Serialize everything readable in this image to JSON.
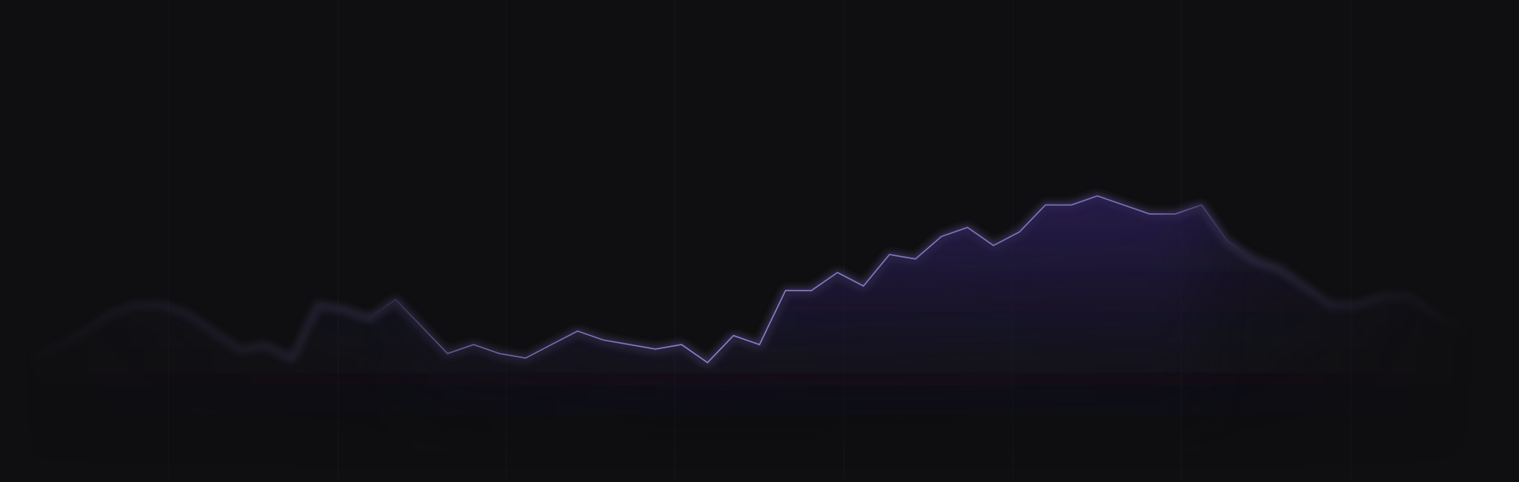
{
  "chart_data": {
    "type": "area",
    "x": [
      0,
      1,
      2,
      3,
      4,
      5,
      6,
      7,
      8,
      9,
      10,
      11,
      12,
      13,
      14,
      15,
      16,
      17,
      18,
      19,
      20,
      21,
      22,
      23,
      24,
      25,
      26,
      27,
      28,
      29,
      30,
      31,
      32,
      33,
      34,
      35,
      36,
      37,
      38,
      39,
      40,
      41,
      42,
      43,
      44,
      45,
      46,
      47,
      48,
      49,
      50,
      51,
      52,
      53,
      54,
      55,
      56
    ],
    "series": [
      {
        "values": [
          24,
          27,
          30,
          34,
          36,
          36,
          34,
          30,
          26,
          27,
          24,
          36,
          35,
          33,
          37,
          31,
          25,
          27,
          25,
          24,
          27,
          30,
          28,
          27,
          26,
          27,
          23,
          29,
          27,
          39,
          39,
          43,
          40,
          47,
          46,
          51,
          53,
          49,
          52,
          58,
          58,
          60,
          58,
          56,
          56,
          58,
          50,
          46,
          44,
          40,
          36,
          36,
          38,
          38,
          34,
          31,
          28
        ]
      }
    ],
    "ylim": [
      0,
      100
    ],
    "grid": true,
    "legend": "none",
    "colors": {
      "background": "#0f0f11",
      "line": "#8b7fd0",
      "fill_top": "#2b1f56",
      "fill_bottom": "#0f0f11",
      "grid": "#16161a"
    }
  }
}
